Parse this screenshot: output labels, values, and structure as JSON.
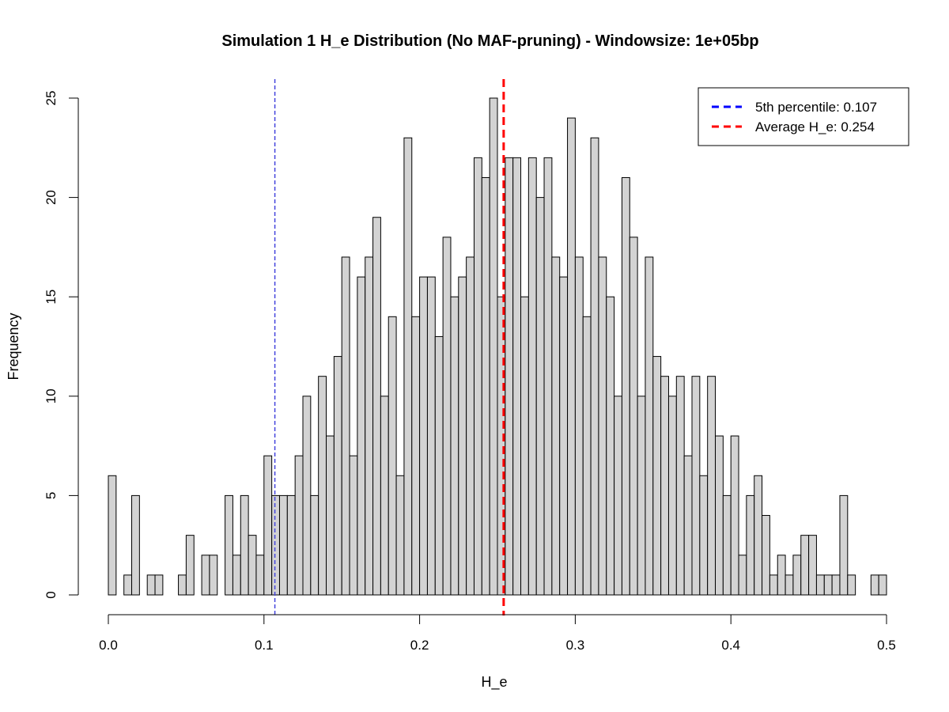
{
  "chart_data": {
    "type": "bar",
    "subtype": "histogram",
    "title": "Simulation 1 H_e Distribution (No MAF-pruning) - Windowsize: 1e+05bp",
    "xlabel": "H_e",
    "ylabel": "Frequency",
    "xlim": [
      0,
      0.5
    ],
    "ylim": [
      0,
      25
    ],
    "xticks": [
      0.0,
      0.1,
      0.2,
      0.3,
      0.4,
      0.5
    ],
    "xtick_labels": [
      "0.0",
      "0.1",
      "0.2",
      "0.3",
      "0.4",
      "0.5"
    ],
    "yticks": [
      0,
      5,
      10,
      15,
      20,
      25
    ],
    "ytick_labels": [
      "0",
      "5",
      "10",
      "15",
      "20",
      "25"
    ],
    "bin_width": 0.005,
    "bin_start": 0.0,
    "bar_fill": "#d3d3d3",
    "bar_stroke": "#000000",
    "values": [
      6,
      0,
      1,
      5,
      0,
      1,
      1,
      0,
      0,
      1,
      3,
      0,
      2,
      2,
      0,
      5,
      2,
      5,
      3,
      2,
      7,
      5,
      5,
      5,
      7,
      10,
      5,
      11,
      8,
      12,
      17,
      7,
      16,
      17,
      19,
      10,
      14,
      6,
      23,
      14,
      16,
      16,
      13,
      18,
      15,
      16,
      17,
      22,
      21,
      25,
      15,
      22,
      22,
      15,
      22,
      20,
      22,
      17,
      16,
      24,
      17,
      14,
      23,
      17,
      15,
      10,
      21,
      18,
      10,
      17,
      12,
      11,
      10,
      11,
      7,
      11,
      6,
      11,
      8,
      5,
      8,
      2,
      5,
      6,
      4,
      1,
      2,
      1,
      2,
      3,
      3,
      1,
      1,
      1,
      5,
      1,
      0,
      0,
      1,
      1
    ],
    "reference_lines": [
      {
        "name": "5th percentile",
        "value": 0.107,
        "color": "#4444dd",
        "style": "dashed"
      },
      {
        "name": "Average H_e",
        "value": 0.254,
        "color": "#ff0000",
        "style": "dashed"
      }
    ],
    "legend": {
      "position": "top-right",
      "entries": [
        {
          "label": "5th percentile:  0.107",
          "color": "#0000ff"
        },
        {
          "label": "Average H_e:  0.254",
          "color": "#ff0000"
        }
      ]
    }
  }
}
